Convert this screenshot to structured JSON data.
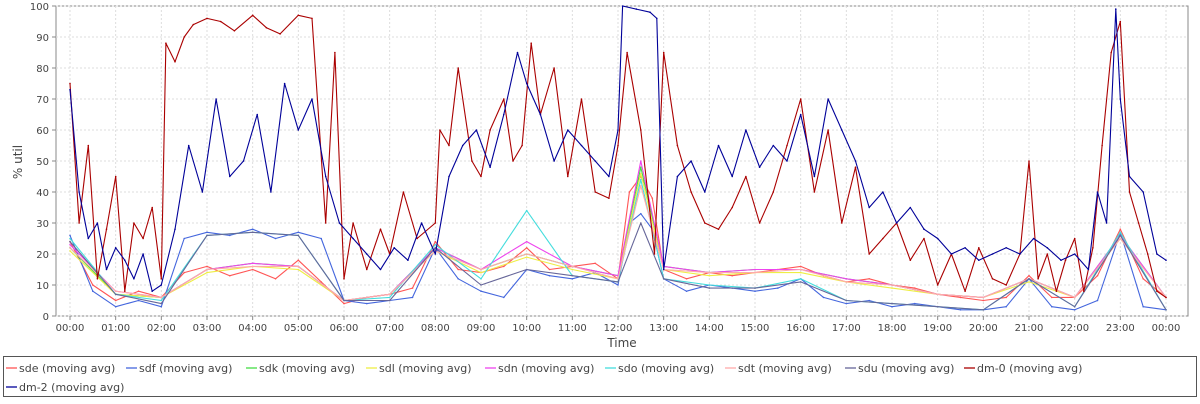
{
  "chart_data": {
    "type": "line",
    "xlabel": "Time",
    "ylabel": "% util",
    "ylim": [
      0,
      100
    ],
    "xlim": [
      0,
      24
    ],
    "yticks": [
      0,
      10,
      20,
      30,
      40,
      50,
      60,
      70,
      80,
      90,
      100
    ],
    "x_tick_labels": [
      "00:00",
      "01:00",
      "02:00",
      "03:00",
      "04:00",
      "05:00",
      "06:00",
      "07:00",
      "08:00",
      "09:00",
      "10:00",
      "11:00",
      "12:00",
      "13:00",
      "14:00",
      "15:00",
      "16:00",
      "17:00",
      "18:00",
      "19:00",
      "20:00",
      "21:00",
      "22:00",
      "23:00",
      "00:00"
    ],
    "grid": true,
    "legend_position": "bottom",
    "series": [
      {
        "name": "sde (moving avg)",
        "color": "#ff5555",
        "x": [
          0,
          0.5,
          1,
          1.5,
          2,
          2.5,
          3,
          3.5,
          4,
          4.5,
          5,
          5.5,
          6,
          6.5,
          7,
          7.5,
          8,
          8.5,
          9,
          9.5,
          10,
          10.5,
          11,
          11.5,
          12,
          12.25,
          12.5,
          12.75,
          13,
          13.5,
          14,
          14.5,
          15,
          15.5,
          16,
          16.5,
          17,
          17.5,
          18,
          18.5,
          19,
          19.5,
          20,
          20.5,
          21,
          21.5,
          22,
          22.5,
          23,
          23.5,
          24
        ],
        "values": [
          24,
          10,
          5,
          8,
          6,
          14,
          16,
          13,
          15,
          12,
          18,
          11,
          4,
          6,
          7,
          9,
          24,
          15,
          14,
          16,
          22,
          15,
          16,
          17,
          12,
          40,
          45,
          38,
          15,
          12,
          14,
          13,
          14,
          15,
          16,
          13,
          11,
          12,
          10,
          9,
          7,
          6,
          5,
          6,
          13,
          6,
          6,
          13,
          28,
          12,
          6
        ]
      },
      {
        "name": "sdf (moving avg)",
        "color": "#4466dd",
        "x": [
          0,
          0.5,
          1,
          1.5,
          2,
          2.5,
          3,
          3.5,
          4,
          4.5,
          5,
          5.5,
          6,
          6.5,
          7,
          7.5,
          8,
          8.5,
          9,
          9.5,
          10,
          10.5,
          11,
          11.5,
          12,
          12.25,
          12.5,
          12.75,
          13,
          13.5,
          14,
          14.5,
          15,
          15.5,
          16,
          16.5,
          17,
          17.5,
          18,
          18.5,
          19,
          19.5,
          20,
          20.5,
          21,
          21.5,
          22,
          22.5,
          23,
          23.5,
          24
        ],
        "values": [
          26,
          8,
          3,
          5,
          3,
          25,
          27,
          26,
          28,
          25,
          27,
          25,
          5,
          4,
          5,
          6,
          22,
          12,
          8,
          6,
          15,
          13,
          12,
          14,
          10,
          30,
          33,
          28,
          12,
          8,
          10,
          9,
          8,
          9,
          12,
          6,
          4,
          5,
          3,
          4,
          3,
          2,
          2,
          3,
          12,
          3,
          2,
          5,
          27,
          3,
          2
        ]
      },
      {
        "name": "sdk (moving avg)",
        "color": "#44dd44",
        "x": [
          0,
          1,
          2,
          3,
          4,
          5,
          6,
          7,
          8,
          9,
          10,
          11,
          12,
          12.5,
          13,
          14,
          15,
          16,
          17,
          18,
          19,
          20,
          21,
          22,
          23,
          24
        ],
        "values": [
          22,
          7,
          6,
          15,
          17,
          16,
          5,
          7,
          22,
          15,
          20,
          16,
          13,
          48,
          16,
          14,
          15,
          15,
          12,
          10,
          7,
          6,
          12,
          6,
          26,
          6
        ]
      },
      {
        "name": "sdl (moving avg)",
        "color": "#eeee44",
        "x": [
          0,
          1,
          2,
          3,
          4,
          5,
          6,
          7,
          8,
          9,
          10,
          11,
          12,
          12.5,
          13,
          14,
          15,
          16,
          17,
          18,
          19,
          20,
          21,
          22,
          23,
          24
        ],
        "values": [
          21,
          7,
          6,
          14,
          16,
          15,
          5,
          7,
          21,
          14,
          19,
          15,
          12,
          46,
          15,
          13,
          14,
          14,
          11,
          9,
          7,
          6,
          11,
          6,
          25,
          6
        ]
      },
      {
        "name": "sdn (moving avg)",
        "color": "#ee44ee",
        "x": [
          0,
          1,
          2,
          3,
          4,
          5,
          6,
          7,
          8,
          9,
          10,
          11,
          12,
          12.5,
          13,
          14,
          15,
          16,
          17,
          18,
          19,
          20,
          21,
          22,
          23,
          24
        ],
        "values": [
          23,
          8,
          6,
          15,
          17,
          16,
          5,
          7,
          22,
          15,
          24,
          16,
          13,
          50,
          16,
          14,
          15,
          15,
          12,
          10,
          7,
          6,
          12,
          6,
          26,
          6
        ]
      },
      {
        "name": "sdo (moving avg)",
        "color": "#44dddd",
        "x": [
          0,
          1,
          2,
          3,
          4,
          5,
          6,
          7,
          8,
          9,
          10,
          11,
          12,
          12.5,
          13,
          14,
          15,
          16,
          17,
          18,
          19,
          20,
          21,
          22,
          23,
          24
        ],
        "values": [
          25,
          7,
          5,
          26,
          27,
          26,
          5,
          6,
          23,
          12,
          34,
          13,
          11,
          44,
          12,
          10,
          9,
          12,
          5,
          4,
          3,
          2,
          12,
          3,
          27,
          2
        ]
      },
      {
        "name": "sdt (moving avg)",
        "color": "#ffaaaa",
        "x": [
          0,
          1,
          2,
          3,
          4,
          5,
          6,
          7,
          8,
          9,
          10,
          11,
          12,
          12.5,
          13,
          14,
          15,
          16,
          17,
          18,
          19,
          20,
          21,
          22,
          23,
          24
        ],
        "values": [
          22,
          8,
          6,
          15,
          16,
          16,
          5,
          7,
          21,
          15,
          20,
          16,
          12,
          42,
          15,
          14,
          14,
          15,
          11,
          10,
          7,
          6,
          12,
          6,
          25,
          6
        ]
      },
      {
        "name": "sdu (moving avg)",
        "color": "#666699",
        "x": [
          0,
          1,
          2,
          3,
          4,
          5,
          6,
          7,
          8,
          9,
          10,
          11,
          12,
          12.5,
          13,
          14,
          15,
          16,
          17,
          18,
          19,
          20,
          21,
          22,
          23,
          24
        ],
        "values": [
          24,
          7,
          4,
          26,
          27,
          26,
          5,
          5,
          22,
          10,
          15,
          13,
          11,
          30,
          12,
          9,
          9,
          11,
          5,
          4,
          3,
          2,
          12,
          3,
          26,
          2
        ]
      },
      {
        "name": "dm-0 (moving avg)",
        "color": "#aa0000",
        "x": [
          0,
          0.2,
          0.4,
          0.6,
          0.8,
          1,
          1.2,
          1.4,
          1.6,
          1.8,
          2,
          2.1,
          2.3,
          2.5,
          2.7,
          3,
          3.3,
          3.6,
          4,
          4.3,
          4.6,
          5,
          5.3,
          5.6,
          5.8,
          6,
          6.2,
          6.5,
          6.8,
          7,
          7.3,
          7.6,
          8,
          8.1,
          8.3,
          8.5,
          8.8,
          9,
          9.2,
          9.5,
          9.7,
          9.9,
          10.1,
          10.3,
          10.6,
          10.9,
          11.2,
          11.5,
          11.8,
          12,
          12.2,
          12.5,
          12.8,
          13,
          13.3,
          13.6,
          13.9,
          14.2,
          14.5,
          14.8,
          15.1,
          15.4,
          15.7,
          16,
          16.3,
          16.6,
          16.9,
          17.2,
          17.5,
          17.8,
          18.1,
          18.4,
          18.7,
          19,
          19.3,
          19.6,
          19.9,
          20.2,
          20.5,
          20.8,
          21,
          21.2,
          21.4,
          21.6,
          21.8,
          22,
          22.2,
          22.4,
          22.6,
          22.8,
          23,
          23.2,
          23.4,
          23.6,
          23.8,
          24
        ],
        "values": [
          75,
          30,
          55,
          12,
          28,
          45,
          8,
          30,
          25,
          35,
          12,
          88,
          82,
          90,
          94,
          96,
          95,
          92,
          97,
          93,
          91,
          97,
          96,
          30,
          85,
          12,
          30,
          15,
          28,
          20,
          40,
          25,
          30,
          60,
          55,
          80,
          50,
          45,
          60,
          70,
          50,
          55,
          88,
          65,
          80,
          45,
          70,
          40,
          38,
          55,
          85,
          60,
          20,
          85,
          55,
          40,
          30,
          28,
          35,
          45,
          30,
          40,
          55,
          70,
          40,
          60,
          30,
          48,
          20,
          25,
          30,
          18,
          25,
          10,
          20,
          8,
          22,
          12,
          10,
          20,
          50,
          12,
          20,
          8,
          18,
          25,
          8,
          22,
          55,
          85,
          95,
          40,
          30,
          20,
          8,
          6
        ]
      },
      {
        "name": "dm-2 (moving avg)",
        "color": "#000099",
        "x": [
          0,
          0.2,
          0.4,
          0.6,
          0.8,
          1,
          1.2,
          1.4,
          1.6,
          1.8,
          2,
          2.3,
          2.6,
          2.9,
          3.2,
          3.5,
          3.8,
          4.1,
          4.4,
          4.7,
          5,
          5.3,
          5.6,
          5.9,
          6.2,
          6.5,
          6.8,
          7.1,
          7.4,
          7.7,
          8,
          8.3,
          8.6,
          8.9,
          9.2,
          9.5,
          9.8,
          10,
          10.3,
          10.6,
          10.9,
          11.2,
          11.5,
          11.8,
          12,
          12.1,
          12.4,
          12.7,
          12.85,
          13,
          13.3,
          13.6,
          13.9,
          14.2,
          14.5,
          14.8,
          15.1,
          15.4,
          15.7,
          16,
          16.3,
          16.6,
          16.9,
          17.2,
          17.5,
          17.8,
          18.1,
          18.4,
          18.7,
          19,
          19.3,
          19.6,
          19.9,
          20.2,
          20.5,
          20.8,
          21.1,
          21.4,
          21.7,
          22,
          22.3,
          22.5,
          22.7,
          22.9,
          23,
          23.2,
          23.5,
          23.8,
          24
        ],
        "values": [
          73,
          40,
          25,
          30,
          15,
          22,
          18,
          12,
          20,
          8,
          10,
          28,
          55,
          40,
          70,
          45,
          50,
          65,
          40,
          75,
          60,
          70,
          45,
          30,
          25,
          20,
          15,
          22,
          18,
          30,
          20,
          45,
          55,
          60,
          48,
          65,
          85,
          75,
          65,
          50,
          60,
          55,
          50,
          45,
          60,
          100,
          99,
          98,
          96,
          15,
          45,
          50,
          40,
          55,
          45,
          60,
          48,
          55,
          50,
          65,
          45,
          70,
          60,
          50,
          35,
          40,
          30,
          35,
          28,
          25,
          20,
          22,
          18,
          20,
          22,
          20,
          25,
          22,
          18,
          20,
          15,
          40,
          30,
          99,
          70,
          45,
          40,
          20,
          18
        ]
      }
    ]
  }
}
